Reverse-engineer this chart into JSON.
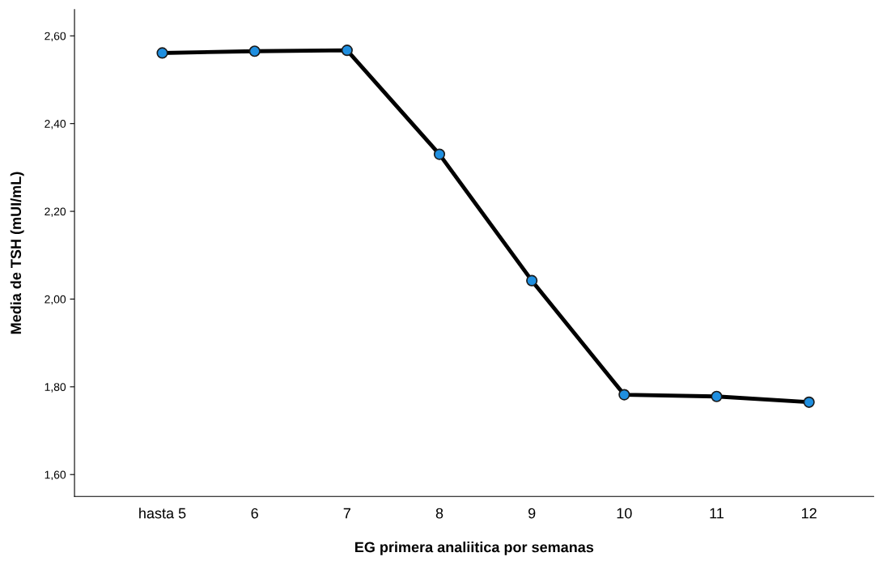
{
  "chart_data": {
    "type": "line",
    "xlabel": "EG primera analiitica por semanas",
    "ylabel": "Media de TSH (mUI/mL)",
    "categories": [
      "hasta 5",
      "6",
      "7",
      "8",
      "9",
      "10",
      "11",
      "12"
    ],
    "series": [
      {
        "color": "#1f8fe0",
        "values": [
          2.561,
          2.565,
          2.567,
          2.33,
          2.042,
          1.782,
          1.778,
          1.765
        ]
      }
    ],
    "ylim": [
      1.55,
      2.66
    ],
    "yticks": [
      {
        "value": 1.6,
        "label": "1,60"
      },
      {
        "value": 1.8,
        "label": "1,80"
      },
      {
        "value": 2.0,
        "label": "2,00"
      },
      {
        "value": 2.2,
        "label": "2,20"
      },
      {
        "value": 2.4,
        "label": "2,40"
      },
      {
        "value": 2.6,
        "label": "2,60"
      }
    ],
    "marker": "circle",
    "line_style": "solid",
    "grid": false
  }
}
